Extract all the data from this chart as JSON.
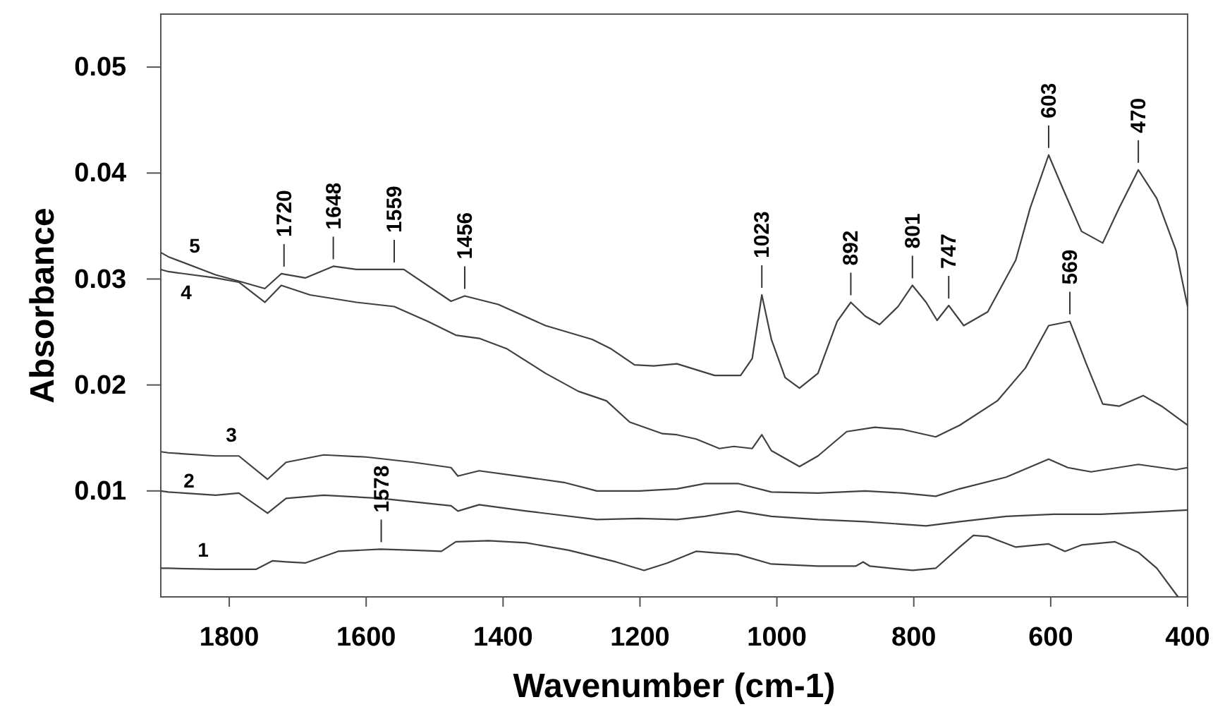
{
  "chart_data": {
    "type": "line",
    "xlabel": "Wavenumber (cm-1)",
    "ylabel": "Absorbance",
    "xlim": [
      1900,
      400
    ],
    "xticks": [
      1800,
      1600,
      1400,
      1200,
      1000,
      800,
      600,
      400
    ],
    "ylim": [
      0,
      0.055
    ],
    "yticks": [
      0.01,
      0.02,
      0.03,
      0.04,
      0.05
    ],
    "grid": false,
    "legend": false,
    "marker": "none",
    "line_style": "solid",
    "series": [
      {
        "name": "1",
        "color": "#404040",
        "x": [
          1900,
          1889,
          1820,
          1761,
          1737,
          1717,
          1689,
          1641,
          1579,
          1531,
          1490,
          1469,
          1421,
          1366,
          1304,
          1235,
          1194,
          1160,
          1118,
          1057,
          1008,
          940,
          885,
          874,
          864,
          802,
          768,
          733,
          713,
          692,
          651,
          603,
          579,
          555,
          506,
          472,
          445,
          414
        ],
        "values": [
          0.0027,
          0.0027,
          0.0026,
          0.0026,
          0.0034,
          0.0033,
          0.0032,
          0.0043,
          0.0045,
          0.0044,
          0.0043,
          0.0052,
          0.0053,
          0.0051,
          0.0044,
          0.0033,
          0.0025,
          0.0032,
          0.0043,
          0.004,
          0.0031,
          0.0029,
          0.0029,
          0.0033,
          0.0029,
          0.0025,
          0.0027,
          0.0047,
          0.0058,
          0.0057,
          0.0047,
          0.005,
          0.0043,
          0.0049,
          0.0052,
          0.0042,
          0.0027,
          0
        ]
      },
      {
        "name": "2",
        "color": "#404040",
        "x": [
          1900,
          1889,
          1820,
          1786,
          1744,
          1717,
          1662,
          1579,
          1476,
          1466,
          1435,
          1366,
          1263,
          1201,
          1146,
          1105,
          1057,
          1008,
          940,
          871,
          782,
          733,
          665,
          596,
          527,
          458,
          400
        ],
        "values": [
          0.01,
          0.0099,
          0.0096,
          0.0098,
          0.0079,
          0.0093,
          0.0096,
          0.0093,
          0.0086,
          0.0081,
          0.0087,
          0.0081,
          0.0073,
          0.0074,
          0.0073,
          0.0076,
          0.0081,
          0.0076,
          0.0073,
          0.0071,
          0.0067,
          0.0071,
          0.0076,
          0.0078,
          0.0078,
          0.008,
          0.0082
        ]
      },
      {
        "name": "3",
        "color": "#404040",
        "x": [
          1900,
          1889,
          1820,
          1786,
          1744,
          1717,
          1662,
          1600,
          1531,
          1476,
          1466,
          1435,
          1366,
          1311,
          1263,
          1201,
          1146,
          1105,
          1057,
          1008,
          940,
          871,
          816,
          768,
          733,
          665,
          603,
          575,
          541,
          472,
          417,
          400
        ],
        "values": [
          0.0137,
          0.0136,
          0.0133,
          0.0133,
          0.0111,
          0.0127,
          0.0134,
          0.0132,
          0.0127,
          0.0122,
          0.0114,
          0.0119,
          0.0113,
          0.0108,
          0.01,
          0.01,
          0.0102,
          0.0107,
          0.0107,
          0.0099,
          0.0098,
          0.01,
          0.0098,
          0.0095,
          0.0102,
          0.0113,
          0.013,
          0.0122,
          0.0118,
          0.0125,
          0.012,
          0.0122
        ]
      },
      {
        "name": "4",
        "color": "#404040",
        "x": [
          1900,
          1889,
          1820,
          1786,
          1748,
          1724,
          1682,
          1614,
          1559,
          1510,
          1469,
          1435,
          1394,
          1338,
          1290,
          1249,
          1215,
          1167,
          1146,
          1118,
          1084,
          1063,
          1036,
          1022,
          1008,
          967,
          940,
          898,
          857,
          816,
          768,
          733,
          678,
          637,
          603,
          572,
          548,
          524,
          500,
          465,
          438,
          400
        ],
        "values": [
          0.0309,
          0.0307,
          0.0301,
          0.0297,
          0.0278,
          0.0294,
          0.0285,
          0.0278,
          0.0274,
          0.026,
          0.0247,
          0.0244,
          0.0234,
          0.0211,
          0.0194,
          0.0185,
          0.0165,
          0.0154,
          0.0153,
          0.0149,
          0.014,
          0.0142,
          0.014,
          0.0153,
          0.0138,
          0.0123,
          0.0133,
          0.0156,
          0.016,
          0.0158,
          0.0151,
          0.0162,
          0.0185,
          0.0216,
          0.0256,
          0.026,
          0.022,
          0.0182,
          0.018,
          0.019,
          0.018,
          0.0162
        ]
      },
      {
        "name": "5",
        "color": "#404040",
        "x": [
          1900,
          1889,
          1820,
          1786,
          1748,
          1724,
          1689,
          1648,
          1614,
          1545,
          1476,
          1456,
          1407,
          1338,
          1270,
          1242,
          1208,
          1180,
          1146,
          1091,
          1053,
          1036,
          1022,
          1008,
          988,
          967,
          940,
          912,
          892,
          871,
          850,
          823,
          802,
          782,
          766,
          749,
          727,
          692,
          651,
          630,
          603,
          582,
          555,
          524,
          500,
          472,
          445,
          417,
          400
        ],
        "values": [
          0.0325,
          0.0321,
          0.0304,
          0.0298,
          0.0291,
          0.0305,
          0.0301,
          0.0312,
          0.0309,
          0.0309,
          0.0279,
          0.0284,
          0.0276,
          0.0256,
          0.0243,
          0.0234,
          0.0219,
          0.0218,
          0.022,
          0.0209,
          0.0209,
          0.0225,
          0.0285,
          0.0243,
          0.0207,
          0.0197,
          0.0211,
          0.026,
          0.0278,
          0.0265,
          0.0257,
          0.0274,
          0.0294,
          0.0278,
          0.0261,
          0.0275,
          0.0256,
          0.0269,
          0.0318,
          0.0367,
          0.0417,
          0.0385,
          0.0345,
          0.0334,
          0.0367,
          0.0403,
          0.0376,
          0.0327,
          0.0274
        ]
      }
    ],
    "annotations": [
      {
        "text": "1720",
        "x": 1720,
        "y": 0.0305
      },
      {
        "text": "1648",
        "x": 1648,
        "y": 0.0312
      },
      {
        "text": "1559",
        "x": 1559,
        "y": 0.0309
      },
      {
        "text": "1456",
        "x": 1456,
        "y": 0.0284
      },
      {
        "text": "1578",
        "x": 1578,
        "y": 0.0045
      },
      {
        "text": "1023",
        "x": 1022,
        "y": 0.0285
      },
      {
        "text": "892",
        "x": 892,
        "y": 0.0278
      },
      {
        "text": "801",
        "x": 802,
        "y": 0.0294
      },
      {
        "text": "747",
        "x": 749,
        "y": 0.0275
      },
      {
        "text": "603",
        "x": 603,
        "y": 0.0417
      },
      {
        "text": "470",
        "x": 472,
        "y": 0.0403
      },
      {
        "text": "569",
        "x": 572,
        "y": 0.026
      }
    ]
  }
}
